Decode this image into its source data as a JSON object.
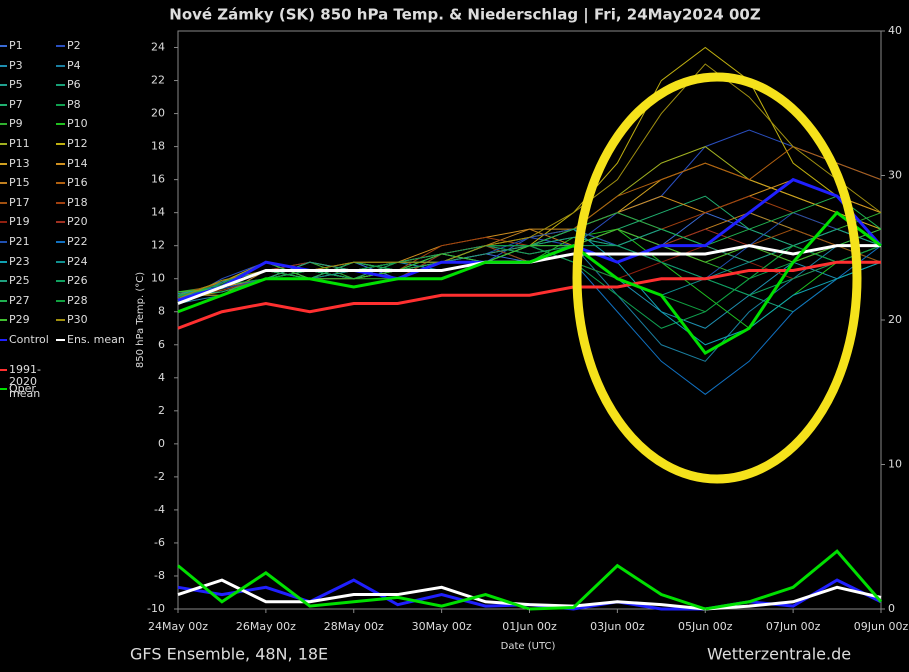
{
  "chart_data": {
    "type": "line",
    "title": "Nové Zámky  (SK)  850 hPa Temp. & Niederschlag | Fri, 24May2024 00Z",
    "y_label": "850 hPa Temp. (°C)",
    "x_label": "Date (UTC)",
    "footer_left": "GFS Ensemble, 48N, 18E",
    "footer_right": "Wetterzentrale.de",
    "x": [
      0,
      1,
      2,
      3,
      4,
      5,
      6,
      7,
      8,
      9,
      10,
      11,
      12,
      13,
      14,
      15,
      16
    ],
    "xlim": [
      0,
      16
    ],
    "xticks": [
      {
        "value": 0,
        "label": "24May 00z"
      },
      {
        "value": 2,
        "label": "26May 00z"
      },
      {
        "value": 4,
        "label": "28May 00z"
      },
      {
        "value": 6,
        "label": "30May 00z"
      },
      {
        "value": 8,
        "label": "01Jun 00z"
      },
      {
        "value": 10,
        "label": "03Jun 00z"
      },
      {
        "value": 12,
        "label": "05Jun 00z"
      },
      {
        "value": 14,
        "label": "07Jun 00z"
      },
      {
        "value": 16,
        "label": "09Jun 00z"
      }
    ],
    "ylim": [
      -10,
      25
    ],
    "yticks": [
      -10,
      -8,
      -6,
      -4,
      -2,
      0,
      2,
      4,
      6,
      8,
      10,
      12,
      14,
      16,
      18,
      20,
      22,
      24
    ],
    "y2lim": [
      0,
      40
    ],
    "y2ticks": [
      0,
      10,
      20,
      30,
      40
    ],
    "grid": false,
    "series": [
      {
        "name": "P1",
        "color": "#3a6bd6",
        "values": [
          9,
          9.5,
          10.5,
          10,
          11,
          10,
          11,
          11.5,
          11,
          12,
          13,
          12,
          14,
          13,
          12,
          11,
          12
        ]
      },
      {
        "name": "P2",
        "color": "#2a4fc0",
        "values": [
          8.5,
          10,
          11,
          10.5,
          11,
          10.5,
          11.5,
          11,
          12.5,
          12,
          14,
          15,
          18,
          19,
          18,
          17,
          16
        ]
      },
      {
        "name": "P3",
        "color": "#1e8fb0",
        "values": [
          9,
          9.5,
          10,
          10.5,
          10,
          11,
          10.5,
          11,
          12,
          11,
          10,
          8,
          7,
          9,
          11,
          10,
          11
        ]
      },
      {
        "name": "P4",
        "color": "#1a7fa0",
        "values": [
          8.5,
          9,
          10.5,
          10,
          10.5,
          10,
          11,
          12,
          11.5,
          12,
          9,
          6,
          5,
          8,
          10,
          12,
          13
        ]
      },
      {
        "name": "P5",
        "color": "#20a090",
        "values": [
          9,
          9.5,
          11,
          10,
          10,
          11,
          11,
          11.5,
          12,
          13,
          12,
          13,
          12,
          14,
          13,
          12,
          12
        ]
      },
      {
        "name": "P6",
        "color": "#18a078",
        "values": [
          8.8,
          9.8,
          10.5,
          11,
          10.5,
          10,
          11,
          11,
          12,
          12.5,
          12,
          11,
          10,
          9,
          8,
          10,
          11
        ]
      },
      {
        "name": "P7",
        "color": "#20b070",
        "values": [
          9,
          9,
          10,
          10.5,
          10,
          10.5,
          11,
          12,
          11,
          12,
          13,
          14,
          15,
          13,
          12,
          11,
          12
        ]
      },
      {
        "name": "P8",
        "color": "#10a050",
        "values": [
          8.5,
          9.5,
          11,
          10,
          11,
          10.5,
          10.5,
          11,
          12,
          11,
          9,
          7,
          8,
          10,
          11,
          12,
          11
        ]
      },
      {
        "name": "P9",
        "color": "#30b030",
        "values": [
          9.2,
          9.6,
          10,
          11,
          10,
          10,
          11.5,
          11,
          12,
          12,
          11,
          12,
          11,
          10,
          12,
          13,
          14
        ]
      },
      {
        "name": "P10",
        "color": "#20c020",
        "values": [
          8.7,
          9.8,
          10.5,
          10.5,
          10,
          11,
          11,
          12,
          11,
          12.5,
          13,
          11,
          9,
          7,
          9,
          11,
          12
        ]
      },
      {
        "name": "P11",
        "color": "#a0b020",
        "values": [
          9,
          9.5,
          10.5,
          10,
          11,
          10.5,
          11,
          11.5,
          12,
          13,
          15,
          17,
          18,
          16,
          15,
          14,
          13
        ]
      },
      {
        "name": "P12",
        "color": "#c0b010",
        "values": [
          8.8,
          9.2,
          10,
          10.5,
          10.5,
          11,
          11.5,
          12,
          12,
          14,
          17,
          22,
          24,
          22,
          17,
          15,
          14
        ]
      },
      {
        "name": "P13",
        "color": "#d0a020",
        "values": [
          9,
          9.8,
          11,
          10.5,
          10,
          10.5,
          11,
          12,
          12.5,
          13,
          14,
          16,
          17,
          16,
          15,
          14,
          13
        ]
      },
      {
        "name": "P14",
        "color": "#d09020",
        "values": [
          8.5,
          9.5,
          10,
          11,
          10.5,
          11,
          12,
          12.5,
          13,
          13,
          14,
          15,
          14,
          15,
          16,
          15,
          14
        ]
      },
      {
        "name": "P15",
        "color": "#c08020",
        "values": [
          9,
          9,
          10.5,
          10,
          11,
          11,
          11.5,
          12,
          13,
          12,
          11,
          12,
          13,
          14,
          13,
          12,
          12
        ]
      },
      {
        "name": "P16",
        "color": "#b06010",
        "values": [
          8.6,
          9.6,
          10.5,
          10.5,
          10,
          10.5,
          11,
          12,
          12,
          13,
          15,
          16,
          17,
          16,
          18,
          17,
          16
        ]
      },
      {
        "name": "P17",
        "color": "#a05010",
        "values": [
          9.1,
          9.7,
          11,
          10,
          10.5,
          11,
          11,
          12,
          11.5,
          12,
          13,
          12,
          11,
          12,
          13,
          12,
          11
        ]
      },
      {
        "name": "P18",
        "color": "#a04010",
        "values": [
          8.9,
          9.3,
          10,
          10.5,
          11,
          10.5,
          12,
          12.5,
          12,
          13,
          14,
          13,
          14,
          15,
          14,
          13,
          12
        ]
      },
      {
        "name": "P19",
        "color": "#902010",
        "values": [
          9,
          9.5,
          10.5,
          10,
          10,
          11,
          11,
          11.5,
          12,
          11,
          10,
          11,
          12,
          11,
          10,
          11,
          12
        ]
      },
      {
        "name": "P20",
        "color": "#a03020",
        "values": [
          8.7,
          9.8,
          10.5,
          11,
          10.5,
          10,
          11.5,
          12,
          11,
          12,
          11,
          12,
          13,
          12,
          11,
          12,
          12
        ]
      },
      {
        "name": "P21",
        "color": "#2050b0",
        "values": [
          9,
          9.4,
          10,
          10.5,
          10.5,
          11,
          11,
          11.5,
          12.5,
          13,
          12,
          11,
          10,
          12,
          14,
          13,
          12
        ]
      },
      {
        "name": "P22",
        "color": "#1070c0",
        "values": [
          8.8,
          9.6,
          11,
          10,
          11,
          10.5,
          11,
          12,
          12,
          11,
          8,
          5,
          3,
          5,
          8,
          10,
          12
        ]
      },
      {
        "name": "P23",
        "color": "#10a0b0",
        "values": [
          9.1,
          9.5,
          10.5,
          10.5,
          10,
          10.5,
          11.5,
          11,
          12,
          13,
          11,
          8,
          6,
          7,
          9,
          10,
          11
        ]
      },
      {
        "name": "P24",
        "color": "#109090",
        "values": [
          8.5,
          9.8,
          10.5,
          10,
          10.5,
          11,
          11,
          12,
          12,
          12,
          10,
          9,
          10,
          11,
          12,
          13,
          12
        ]
      },
      {
        "name": "P25",
        "color": "#20a080",
        "values": [
          9,
          9.2,
          10,
          11,
          10.5,
          10,
          11,
          11.5,
          12,
          12.5,
          12,
          13,
          12,
          11,
          12,
          13,
          12
        ]
      },
      {
        "name": "P26",
        "color": "#10a060",
        "values": [
          8.9,
          9.7,
          11,
          10.5,
          10,
          11,
          11.5,
          12,
          11.5,
          12,
          12,
          11,
          10,
          9,
          10,
          11,
          12
        ]
      },
      {
        "name": "P27",
        "color": "#20b050",
        "values": [
          9,
          9.5,
          10.5,
          10,
          11,
          10.5,
          11,
          11,
          12,
          13,
          14,
          13,
          12,
          13,
          14,
          15,
          13
        ]
      },
      {
        "name": "P28",
        "color": "#10a040",
        "values": [
          8.6,
          9.6,
          10,
          10.5,
          10.5,
          11,
          11,
          12,
          12,
          11,
          10,
          9,
          8,
          10,
          12,
          11,
          12
        ]
      },
      {
        "name": "P29",
        "color": "#40c030",
        "values": [
          9.2,
          9.4,
          11,
          10,
          10,
          10.5,
          11.5,
          11,
          12,
          12,
          13,
          12,
          11,
          12,
          11,
          12,
          13
        ]
      },
      {
        "name": "P30",
        "color": "#a09010",
        "values": [
          8.8,
          9.9,
          10.5,
          10.5,
          11,
          11,
          11,
          12,
          12.5,
          14,
          16,
          20,
          23,
          21,
          18,
          16,
          14
        ]
      },
      {
        "name": "Control",
        "color": "#2020ff",
        "width": 3,
        "values": [
          8.7,
          9.5,
          11,
          10.5,
          10.5,
          10,
          11,
          11,
          11,
          12,
          11,
          12,
          12,
          14,
          16,
          15,
          12
        ],
        "precip": [
          1.5,
          1,
          1.5,
          0.5,
          2,
          0.3,
          1,
          0.2,
          0.3,
          0,
          0.5,
          0,
          0,
          0.5,
          0.2,
          2,
          0.5
        ]
      },
      {
        "name": "Ens. mean",
        "color": "#ffffff",
        "width": 3,
        "values": [
          8.5,
          9.5,
          10.5,
          10.5,
          10.5,
          10.5,
          10.5,
          11,
          11,
          11.5,
          11.5,
          11.5,
          11.5,
          12,
          11.5,
          12,
          12
        ],
        "precip": [
          1,
          2,
          0.5,
          0.5,
          1,
          1,
          1.5,
          0.5,
          0.3,
          0.2,
          0.5,
          0.3,
          0,
          0.2,
          0.5,
          1.5,
          0.8
        ]
      },
      {
        "name": "1991-2020 mean",
        "color": "#ff3030",
        "width": 3,
        "values": [
          7,
          8,
          8.5,
          8,
          8.5,
          8.5,
          9,
          9,
          9,
          9.5,
          9.5,
          10,
          10,
          10.5,
          10.5,
          11,
          11
        ]
      },
      {
        "name": "Oper",
        "color": "#00e000",
        "width": 3,
        "values": [
          8,
          9,
          10,
          10,
          9.5,
          10,
          10,
          11,
          11,
          12,
          10,
          9,
          5.5,
          7,
          11,
          14,
          12
        ],
        "precip": [
          3,
          0.5,
          2.5,
          0.2,
          0.5,
          0.8,
          0.2,
          1,
          0,
          0.1,
          3,
          1,
          0,
          0.5,
          1.5,
          4,
          0.5
        ]
      }
    ]
  }
}
